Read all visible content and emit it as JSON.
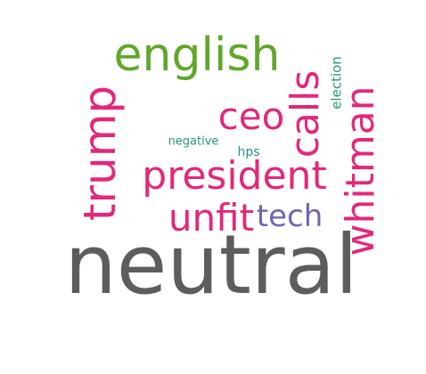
{
  "colors": {
    "neutral": "#5d5d5d",
    "pink": "#e3287a",
    "green": "#62a62b",
    "purple": "#7165b0",
    "teal": "#23987a"
  },
  "words": [
    {
      "text": "neutral",
      "color": "#5d5d5d"
    },
    {
      "text": "english",
      "color": "#62a62b"
    },
    {
      "text": "trump",
      "color": "#e3287a"
    },
    {
      "text": "president",
      "color": "#e3287a"
    },
    {
      "text": "whitman",
      "color": "#e3287a"
    },
    {
      "text": "ceo",
      "color": "#e3287a"
    },
    {
      "text": "calls",
      "color": "#e3287a"
    },
    {
      "text": "unfit",
      "color": "#e3287a"
    },
    {
      "text": "tech",
      "color": "#7165b0"
    },
    {
      "text": "election",
      "color": "#23987a"
    },
    {
      "text": "negative",
      "color": "#23987a"
    },
    {
      "text": "hps",
      "color": "#23987a"
    }
  ]
}
